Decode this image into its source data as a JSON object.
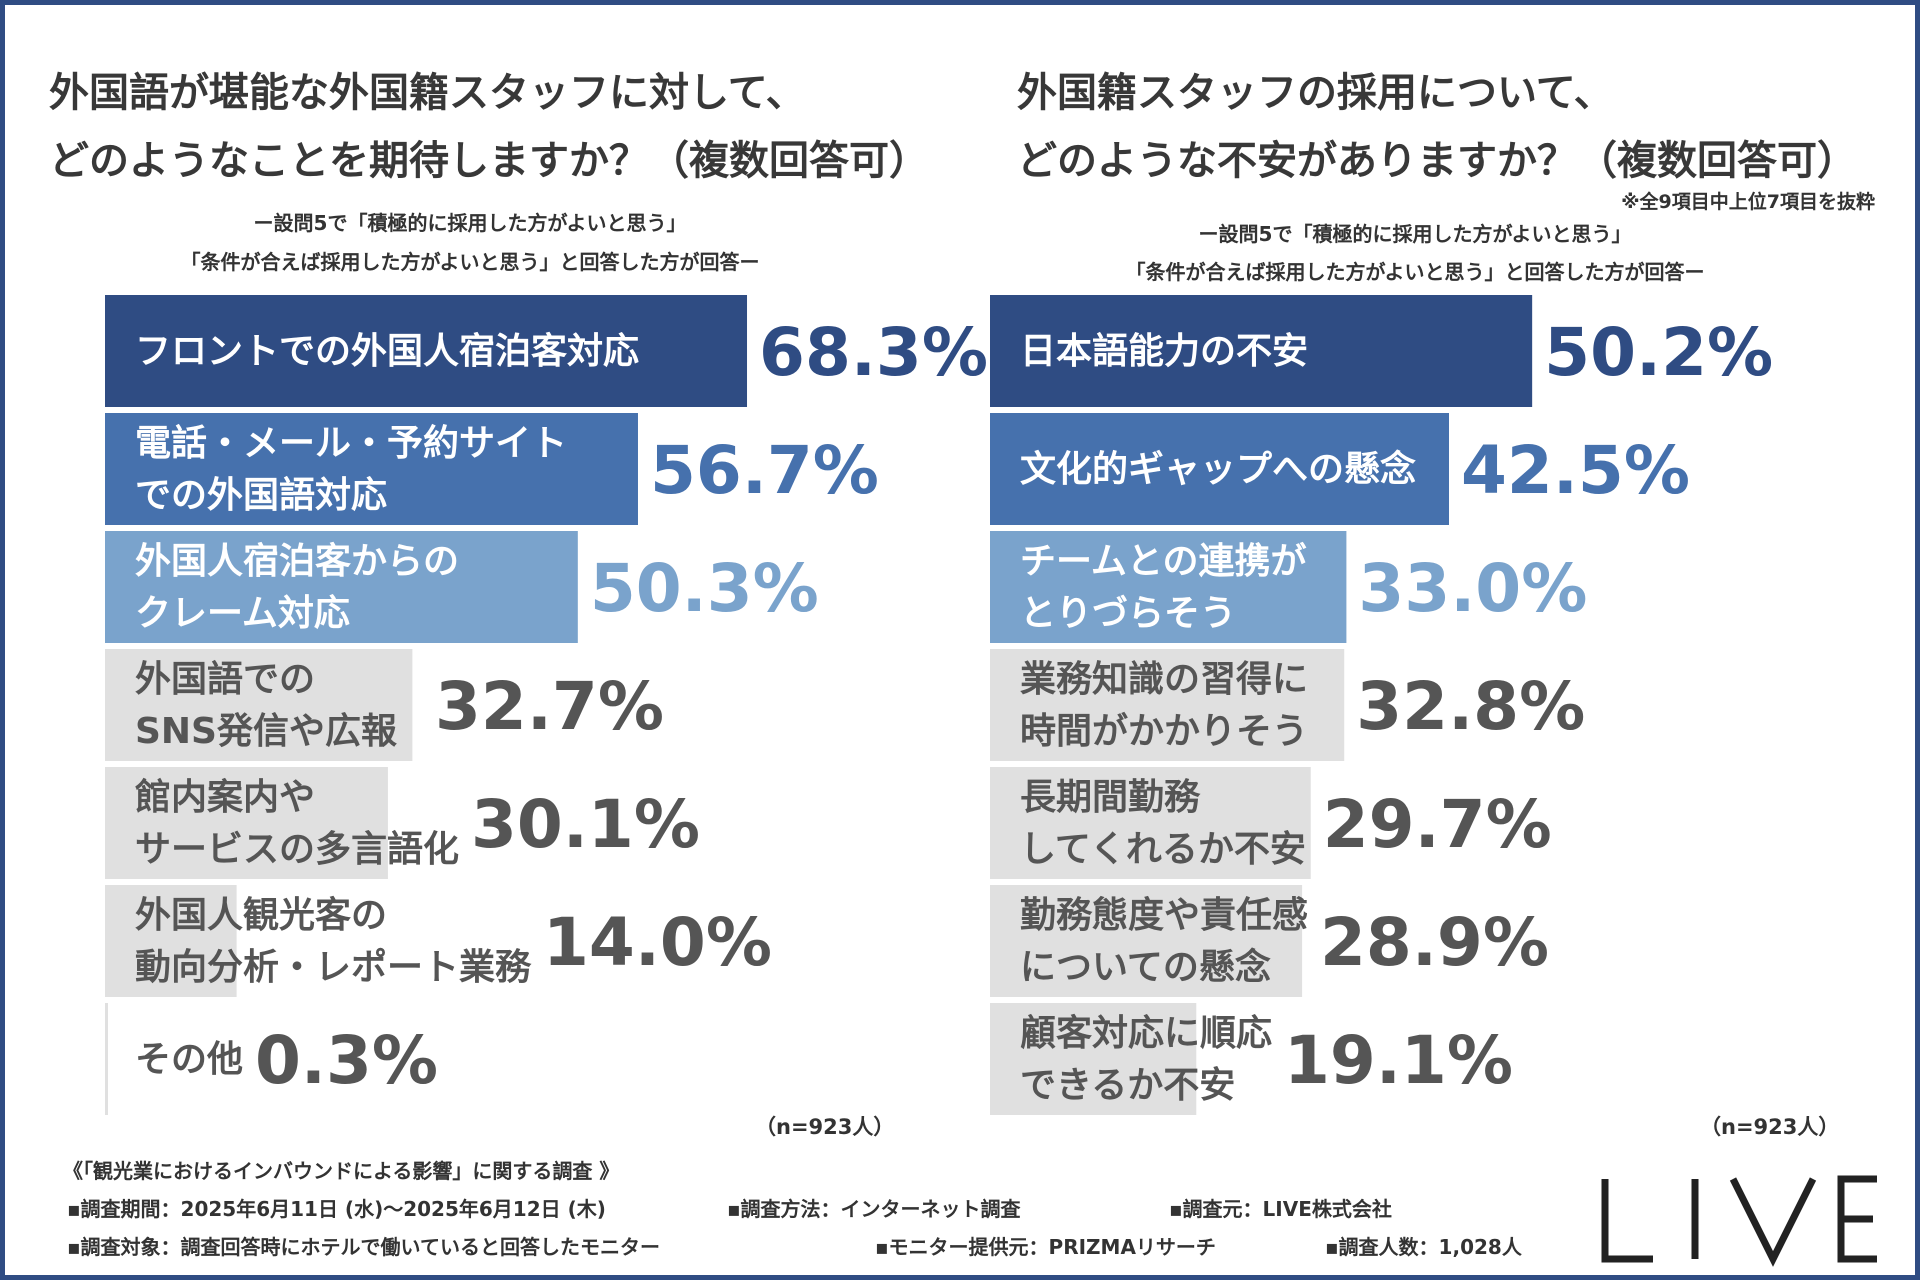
{
  "left": {
    "title_line1": "外国語が堪能な外国籍スタッフに対して、",
    "title_line2": "どのようなことを期待しますか？（複数回答可）",
    "sub_line1": "ー設問5で「積極的に採用した方がよいと思う」",
    "sub_line2": "「条件が合えば採用した方がよいと思う」と回答した方が回答ー",
    "n_label": "（n=923人）"
  },
  "right": {
    "title_line1": "外国籍スタッフの採用について、",
    "title_line2": "どのような不安がありますか？（複数回答可）",
    "excerpt_note": "※全9項目中上位7項目を抜粋",
    "sub_line1": "ー設問5で「積極的に採用した方がよいと思う」",
    "sub_line2": "「条件が合えば採用した方がよいと思う」と回答した方が回答ー",
    "n_label": "（n=923人）"
  },
  "footer": {
    "survey_title": "《「観光業におけるインバウンドによる影響」に関する調査 》",
    "period": "▪調査期間：2025年6月11日 (水)〜2025年6月12日 (木)",
    "method": "▪調査方法：インターネット調査",
    "organizer": "▪調査元：LIVE株式会社",
    "target": "▪調査対象：調査回答時にホテルで働いていると回答したモニター",
    "provider": "▪モニター提供元：PRIZMAリサーチ",
    "count": "▪調査人数：1,028人"
  },
  "logo": {
    "text": "LIVE"
  },
  "colors": {
    "border": "#2f4c83",
    "rank1": "#2f4c83",
    "rank2": "#4671ad",
    "rank3": "#7aa3cc",
    "other": "#e0e0e0",
    "text_dark": "#383838",
    "text_gray": "#555555"
  },
  "chart_data": [
    {
      "type": "bar",
      "orientation": "horizontal",
      "unit": "%",
      "categories": [
        [
          "フロントでの外国人宿泊客対応"
        ],
        [
          "電話・メール・予約サイト",
          "での外国語対応"
        ],
        [
          "外国人宿泊客からの",
          "クレーム対応"
        ],
        [
          "外国語での",
          "SNS発信や広報"
        ],
        [
          "館内案内や",
          "サービスの多言語化"
        ],
        [
          "外国人観光客の",
          "動向分析・レポート業務"
        ],
        [
          "その他"
        ]
      ],
      "values": [
        68.3,
        56.7,
        50.3,
        32.7,
        30.1,
        14.0,
        0.3
      ],
      "value_labels": [
        "68.3%",
        "56.7%",
        "50.3%",
        "32.7%",
        "30.1%",
        "14.0%",
        "0.3%"
      ]
    },
    {
      "type": "bar",
      "orientation": "horizontal",
      "unit": "%",
      "categories": [
        [
          "日本語能力の不安"
        ],
        [
          "文化的ギャップへの懸念"
        ],
        [
          "チームとの連携が",
          "とりづらそう"
        ],
        [
          "業務知識の習得に",
          "時間がかかりそう"
        ],
        [
          "長期間勤務",
          "してくれるか不安"
        ],
        [
          "勤務態度や責任感",
          "についての懸念"
        ],
        [
          "顧客対応に順応",
          "できるか不安"
        ]
      ],
      "values": [
        50.2,
        42.5,
        33.0,
        32.8,
        29.7,
        28.9,
        19.1
      ],
      "value_labels": [
        "50.2%",
        "42.5%",
        "33.0%",
        "32.8%",
        "29.7%",
        "28.9%",
        "19.1%"
      ]
    }
  ]
}
